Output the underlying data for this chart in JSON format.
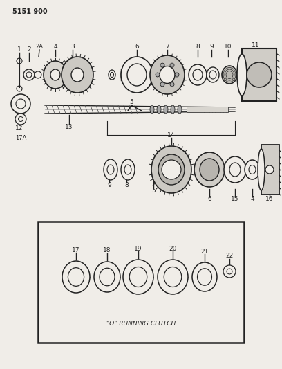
{
  "bg_color": "#f0ede8",
  "line_color": "#222222",
  "part_number_label": "5151 900",
  "running_clutch_label": "\"O\" RUNNING CLUTCH",
  "fig_w": 4.08,
  "fig_h": 5.33,
  "dpi": 100
}
